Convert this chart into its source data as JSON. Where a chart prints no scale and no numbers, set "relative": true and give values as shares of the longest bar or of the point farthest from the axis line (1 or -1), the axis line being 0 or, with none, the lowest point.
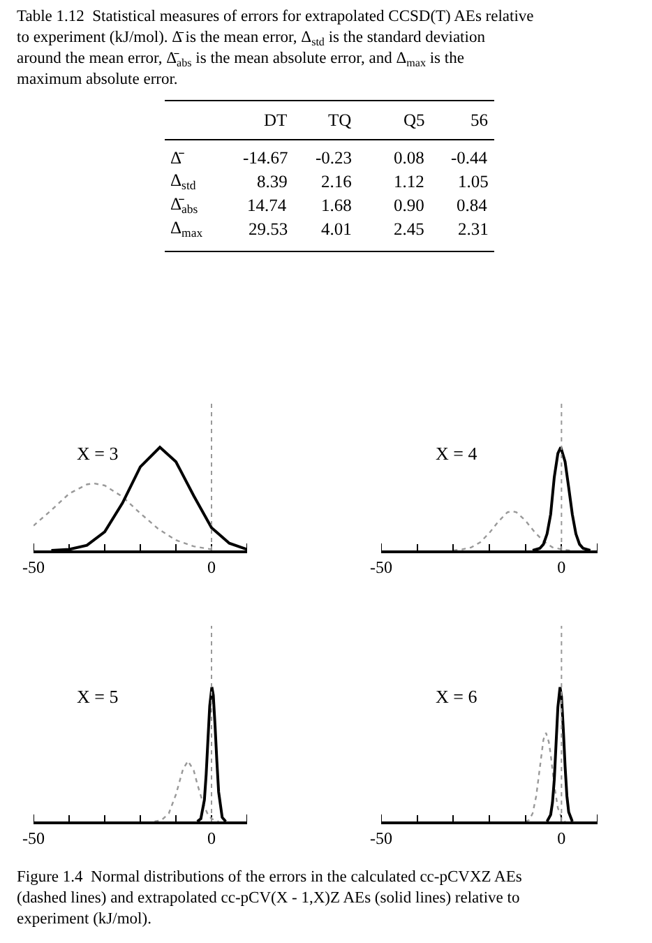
{
  "chart_data": [
    {
      "type": "other",
      "title": "Table 1.12  Statistical measures of errors for extrapolated CCSD(T) AEs relative to experiment (kJ/mol). Δ̄ is the mean error, Δ$_{std}$ is the standard deviation around the mean error, Δ̄$_{abs}$ is the mean absolute error, and Δ$_{max}$ is the maximum absolute error.",
      "annotations": [
        "\tDT\tTQ\tQ5\t56",
        "Δ̄\t-14.67\t-0.23\t0.08\t-0.44",
        "Δ$_{std}$\t8.39\t2.16\t1.12\t1.05",
        "Δ̄$_{abs}$\t14.74\t1.68\t0.90\t0.84",
        "Δ$_{max}$\t29.53\t4.01\t2.45\t2.31"
      ]
    },
    {
      "type": "line",
      "title": "X = 3",
      "relative": true,
      "xlim": [
        -50,
        10
      ],
      "xticks": [
        -50,
        {
          "value": -40,
          "label": null
        },
        {
          "value": -30,
          "label": null
        },
        {
          "value": -20,
          "label": null
        },
        {
          "value": -10,
          "label": null
        },
        0,
        {
          "value": 10,
          "label": null
        }
      ],
      "ref_lines": [
        {
          "axis": "x",
          "value": 0,
          "color": "#999999",
          "line_style": "dotted"
        }
      ],
      "series": [
        {
          "color": "#999999",
          "line_style": "dotted",
          "x": [
            -50,
            -45,
            -40,
            -35,
            -33,
            -30,
            -25,
            -20,
            -15,
            -10,
            -5,
            0
          ],
          "values": [
            0.24,
            0.39,
            0.55,
            0.64,
            0.65,
            0.63,
            0.52,
            0.36,
            0.21,
            0.1,
            0.04,
            0.01
          ]
        },
        {
          "color": "#000000",
          "line_style": "solid",
          "x": [
            -45,
            -40,
            -35,
            -30,
            -25,
            -20,
            -14.5,
            -10,
            -5,
            0,
            5,
            10
          ],
          "values": [
            0.0,
            0.01,
            0.05,
            0.18,
            0.46,
            0.81,
            1.0,
            0.86,
            0.53,
            0.22,
            0.07,
            0.01
          ]
        }
      ]
    },
    {
      "type": "line",
      "title": "X = 4",
      "relative": true,
      "xlim": [
        -50,
        10
      ],
      "xticks": [
        -50,
        {
          "value": -40,
          "label": null
        },
        {
          "value": -30,
          "label": null
        },
        {
          "value": -20,
          "label": null
        },
        {
          "value": -10,
          "label": null
        },
        0,
        {
          "value": 10,
          "label": null
        }
      ],
      "ref_lines": [
        {
          "axis": "x",
          "value": 0,
          "color": "#999999",
          "line_style": "dotted"
        }
      ],
      "series": [
        {
          "color": "#999999",
          "line_style": "dotted",
          "x": [
            -30,
            -27.5,
            -25,
            -22.5,
            -20,
            -17.5,
            -15,
            -13.6,
            -12.5,
            -10,
            -7.5,
            -5,
            -2.5,
            0,
            2.5
          ],
          "values": [
            0.0,
            0.01,
            0.03,
            0.08,
            0.17,
            0.28,
            0.37,
            0.38,
            0.37,
            0.29,
            0.18,
            0.09,
            0.03,
            0.01,
            0.0
          ]
        },
        {
          "color": "#000000",
          "line_style": "solid",
          "x": [
            -8,
            -6,
            -5,
            -4,
            -3,
            -2,
            -1,
            -0.2,
            1,
            2,
            3,
            4,
            5,
            6,
            8
          ],
          "values": [
            0.0,
            0.02,
            0.06,
            0.16,
            0.35,
            0.71,
            0.94,
            1.0,
            0.86,
            0.61,
            0.35,
            0.16,
            0.06,
            0.02,
            0.0
          ]
        }
      ]
    },
    {
      "type": "line",
      "title": "X = 5",
      "relative": true,
      "xlim": [
        -50,
        10
      ],
      "xticks": [
        -50,
        {
          "value": -40,
          "label": null
        },
        {
          "value": -30,
          "label": null
        },
        {
          "value": -20,
          "label": null
        },
        {
          "value": -10,
          "label": null
        },
        0,
        {
          "value": 10,
          "label": null
        }
      ],
      "ref_lines": [
        {
          "axis": "x",
          "value": 0,
          "color": "#999999",
          "line_style": "dotted"
        }
      ],
      "series": [
        {
          "color": "#999999",
          "line_style": "dotted",
          "x": [
            -16,
            -14,
            -12,
            -10,
            -8,
            -6.6,
            -5,
            -4,
            -3,
            -2,
            -1,
            0,
            2
          ],
          "values": [
            0.0,
            0.01,
            0.06,
            0.2,
            0.39,
            0.45,
            0.38,
            0.28,
            0.19,
            0.11,
            0.05,
            0.02,
            0.0
          ]
        },
        {
          "color": "#000000",
          "line_style": "solid",
          "x": [
            -4,
            -3,
            -2,
            -1.5,
            -1,
            -0.5,
            0.1,
            0.5,
            1,
            1.5,
            2,
            3,
            4
          ],
          "values": [
            0.0,
            0.02,
            0.16,
            0.35,
            0.61,
            0.86,
            1.0,
            0.94,
            0.71,
            0.45,
            0.22,
            0.03,
            0.0
          ]
        }
      ]
    },
    {
      "type": "line",
      "title": "X = 6",
      "relative": true,
      "xlim": [
        -50,
        10
      ],
      "xticks": [
        -50,
        {
          "value": -40,
          "label": null
        },
        {
          "value": -30,
          "label": null
        },
        {
          "value": -20,
          "label": null
        },
        {
          "value": -10,
          "label": null
        },
        0,
        {
          "value": 10,
          "label": null
        }
      ],
      "ref_lines": [
        {
          "axis": "x",
          "value": 0,
          "color": "#999999",
          "line_style": "dotted"
        }
      ],
      "series": [
        {
          "color": "#999999",
          "line_style": "dotted",
          "x": [
            -10,
            -9,
            -8,
            -7,
            -6,
            -5,
            -4.3,
            -3.5,
            -3,
            -2,
            -1,
            0,
            1
          ],
          "values": [
            0.0,
            0.01,
            0.06,
            0.19,
            0.4,
            0.61,
            0.66,
            0.59,
            0.5,
            0.27,
            0.1,
            0.03,
            0.0
          ]
        },
        {
          "color": "#000000",
          "line_style": "solid",
          "x": [
            -4,
            -3,
            -2.5,
            -2,
            -1.5,
            -1,
            -0.4,
            0,
            0.5,
            1,
            1.5,
            2,
            3
          ],
          "values": [
            0.0,
            0.05,
            0.14,
            0.31,
            0.58,
            0.85,
            1.0,
            0.93,
            0.69,
            0.41,
            0.19,
            0.07,
            0.0
          ]
        }
      ]
    },
    {
      "type": "other",
      "title": "Figure 1.4  Normal distributions of the errors in the calculated cc-pCVXZ AEs (dashed lines) and extrapolated cc-pCV(X - 1,X)Z AEs (solid lines) relative to experiment (kJ/mol)."
    }
  ]
}
